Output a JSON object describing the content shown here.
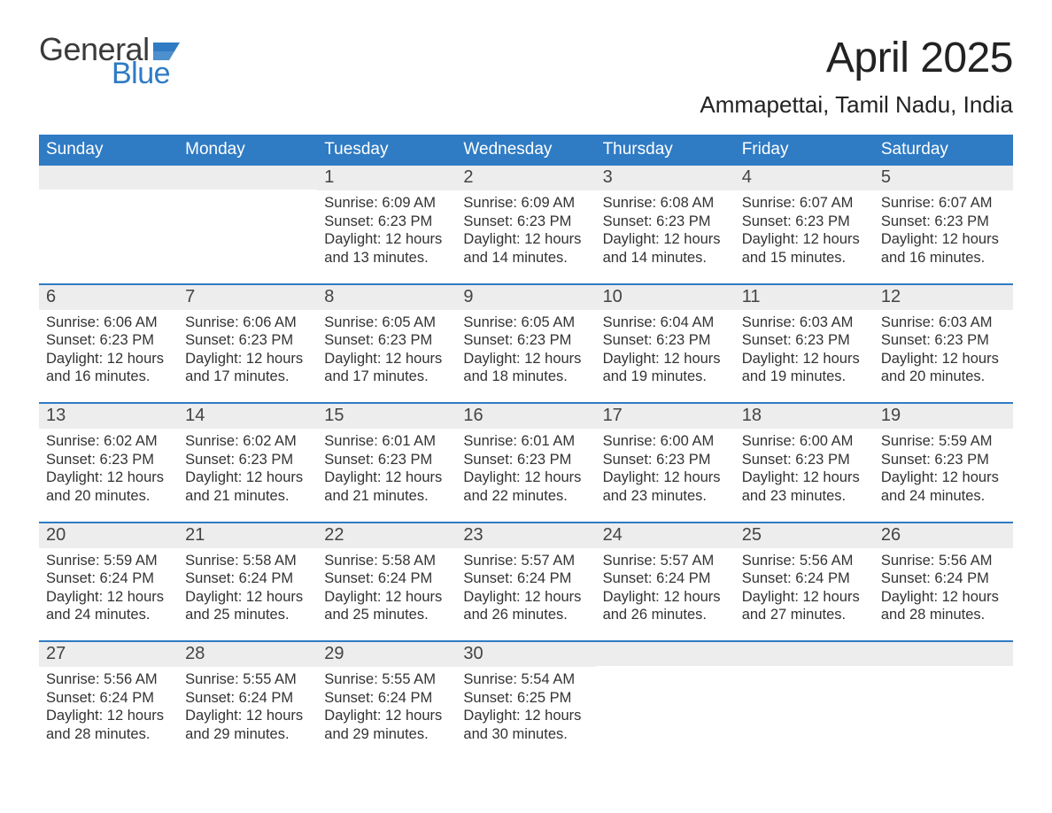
{
  "brand": {
    "word_general": "General",
    "word_blue": "Blue",
    "flag_color": "#2f7bc4",
    "text_dark": "#3a3a3a"
  },
  "header": {
    "title": "April 2025",
    "location": "Ammapettai, Tamil Nadu, India",
    "title_fontsize": 48,
    "location_fontsize": 26
  },
  "styling": {
    "header_bg": "#2f7bc4",
    "header_text": "#ffffff",
    "daynum_bg": "#ededed",
    "daynum_text": "#444444",
    "body_text": "#333333",
    "week_border": "#2f7bc4",
    "background": "#ffffff",
    "body_fontsize": 16.5,
    "header_fontsize": 19
  },
  "weekdays": [
    "Sunday",
    "Monday",
    "Tuesday",
    "Wednesday",
    "Thursday",
    "Friday",
    "Saturday"
  ],
  "labels": {
    "sunrise": "Sunrise: ",
    "sunset": "Sunset: ",
    "daylight": "Daylight: "
  },
  "weeks": [
    [
      {
        "day": "",
        "sunrise": "",
        "sunset": "",
        "daylight": ""
      },
      {
        "day": "",
        "sunrise": "",
        "sunset": "",
        "daylight": ""
      },
      {
        "day": "1",
        "sunrise": "6:09 AM",
        "sunset": "6:23 PM",
        "daylight": "12 hours and 13 minutes."
      },
      {
        "day": "2",
        "sunrise": "6:09 AM",
        "sunset": "6:23 PM",
        "daylight": "12 hours and 14 minutes."
      },
      {
        "day": "3",
        "sunrise": "6:08 AM",
        "sunset": "6:23 PM",
        "daylight": "12 hours and 14 minutes."
      },
      {
        "day": "4",
        "sunrise": "6:07 AM",
        "sunset": "6:23 PM",
        "daylight": "12 hours and 15 minutes."
      },
      {
        "day": "5",
        "sunrise": "6:07 AM",
        "sunset": "6:23 PM",
        "daylight": "12 hours and 16 minutes."
      }
    ],
    [
      {
        "day": "6",
        "sunrise": "6:06 AM",
        "sunset": "6:23 PM",
        "daylight": "12 hours and 16 minutes."
      },
      {
        "day": "7",
        "sunrise": "6:06 AM",
        "sunset": "6:23 PM",
        "daylight": "12 hours and 17 minutes."
      },
      {
        "day": "8",
        "sunrise": "6:05 AM",
        "sunset": "6:23 PM",
        "daylight": "12 hours and 17 minutes."
      },
      {
        "day": "9",
        "sunrise": "6:05 AM",
        "sunset": "6:23 PM",
        "daylight": "12 hours and 18 minutes."
      },
      {
        "day": "10",
        "sunrise": "6:04 AM",
        "sunset": "6:23 PM",
        "daylight": "12 hours and 19 minutes."
      },
      {
        "day": "11",
        "sunrise": "6:03 AM",
        "sunset": "6:23 PM",
        "daylight": "12 hours and 19 minutes."
      },
      {
        "day": "12",
        "sunrise": "6:03 AM",
        "sunset": "6:23 PM",
        "daylight": "12 hours and 20 minutes."
      }
    ],
    [
      {
        "day": "13",
        "sunrise": "6:02 AM",
        "sunset": "6:23 PM",
        "daylight": "12 hours and 20 minutes."
      },
      {
        "day": "14",
        "sunrise": "6:02 AM",
        "sunset": "6:23 PM",
        "daylight": "12 hours and 21 minutes."
      },
      {
        "day": "15",
        "sunrise": "6:01 AM",
        "sunset": "6:23 PM",
        "daylight": "12 hours and 21 minutes."
      },
      {
        "day": "16",
        "sunrise": "6:01 AM",
        "sunset": "6:23 PM",
        "daylight": "12 hours and 22 minutes."
      },
      {
        "day": "17",
        "sunrise": "6:00 AM",
        "sunset": "6:23 PM",
        "daylight": "12 hours and 23 minutes."
      },
      {
        "day": "18",
        "sunrise": "6:00 AM",
        "sunset": "6:23 PM",
        "daylight": "12 hours and 23 minutes."
      },
      {
        "day": "19",
        "sunrise": "5:59 AM",
        "sunset": "6:23 PM",
        "daylight": "12 hours and 24 minutes."
      }
    ],
    [
      {
        "day": "20",
        "sunrise": "5:59 AM",
        "sunset": "6:24 PM",
        "daylight": "12 hours and 24 minutes."
      },
      {
        "day": "21",
        "sunrise": "5:58 AM",
        "sunset": "6:24 PM",
        "daylight": "12 hours and 25 minutes."
      },
      {
        "day": "22",
        "sunrise": "5:58 AM",
        "sunset": "6:24 PM",
        "daylight": "12 hours and 25 minutes."
      },
      {
        "day": "23",
        "sunrise": "5:57 AM",
        "sunset": "6:24 PM",
        "daylight": "12 hours and 26 minutes."
      },
      {
        "day": "24",
        "sunrise": "5:57 AM",
        "sunset": "6:24 PM",
        "daylight": "12 hours and 26 minutes."
      },
      {
        "day": "25",
        "sunrise": "5:56 AM",
        "sunset": "6:24 PM",
        "daylight": "12 hours and 27 minutes."
      },
      {
        "day": "26",
        "sunrise": "5:56 AM",
        "sunset": "6:24 PM",
        "daylight": "12 hours and 28 minutes."
      }
    ],
    [
      {
        "day": "27",
        "sunrise": "5:56 AM",
        "sunset": "6:24 PM",
        "daylight": "12 hours and 28 minutes."
      },
      {
        "day": "28",
        "sunrise": "5:55 AM",
        "sunset": "6:24 PM",
        "daylight": "12 hours and 29 minutes."
      },
      {
        "day": "29",
        "sunrise": "5:55 AM",
        "sunset": "6:24 PM",
        "daylight": "12 hours and 29 minutes."
      },
      {
        "day": "30",
        "sunrise": "5:54 AM",
        "sunset": "6:25 PM",
        "daylight": "12 hours and 30 minutes."
      },
      {
        "day": "",
        "sunrise": "",
        "sunset": "",
        "daylight": ""
      },
      {
        "day": "",
        "sunrise": "",
        "sunset": "",
        "daylight": ""
      },
      {
        "day": "",
        "sunrise": "",
        "sunset": "",
        "daylight": ""
      }
    ]
  ]
}
